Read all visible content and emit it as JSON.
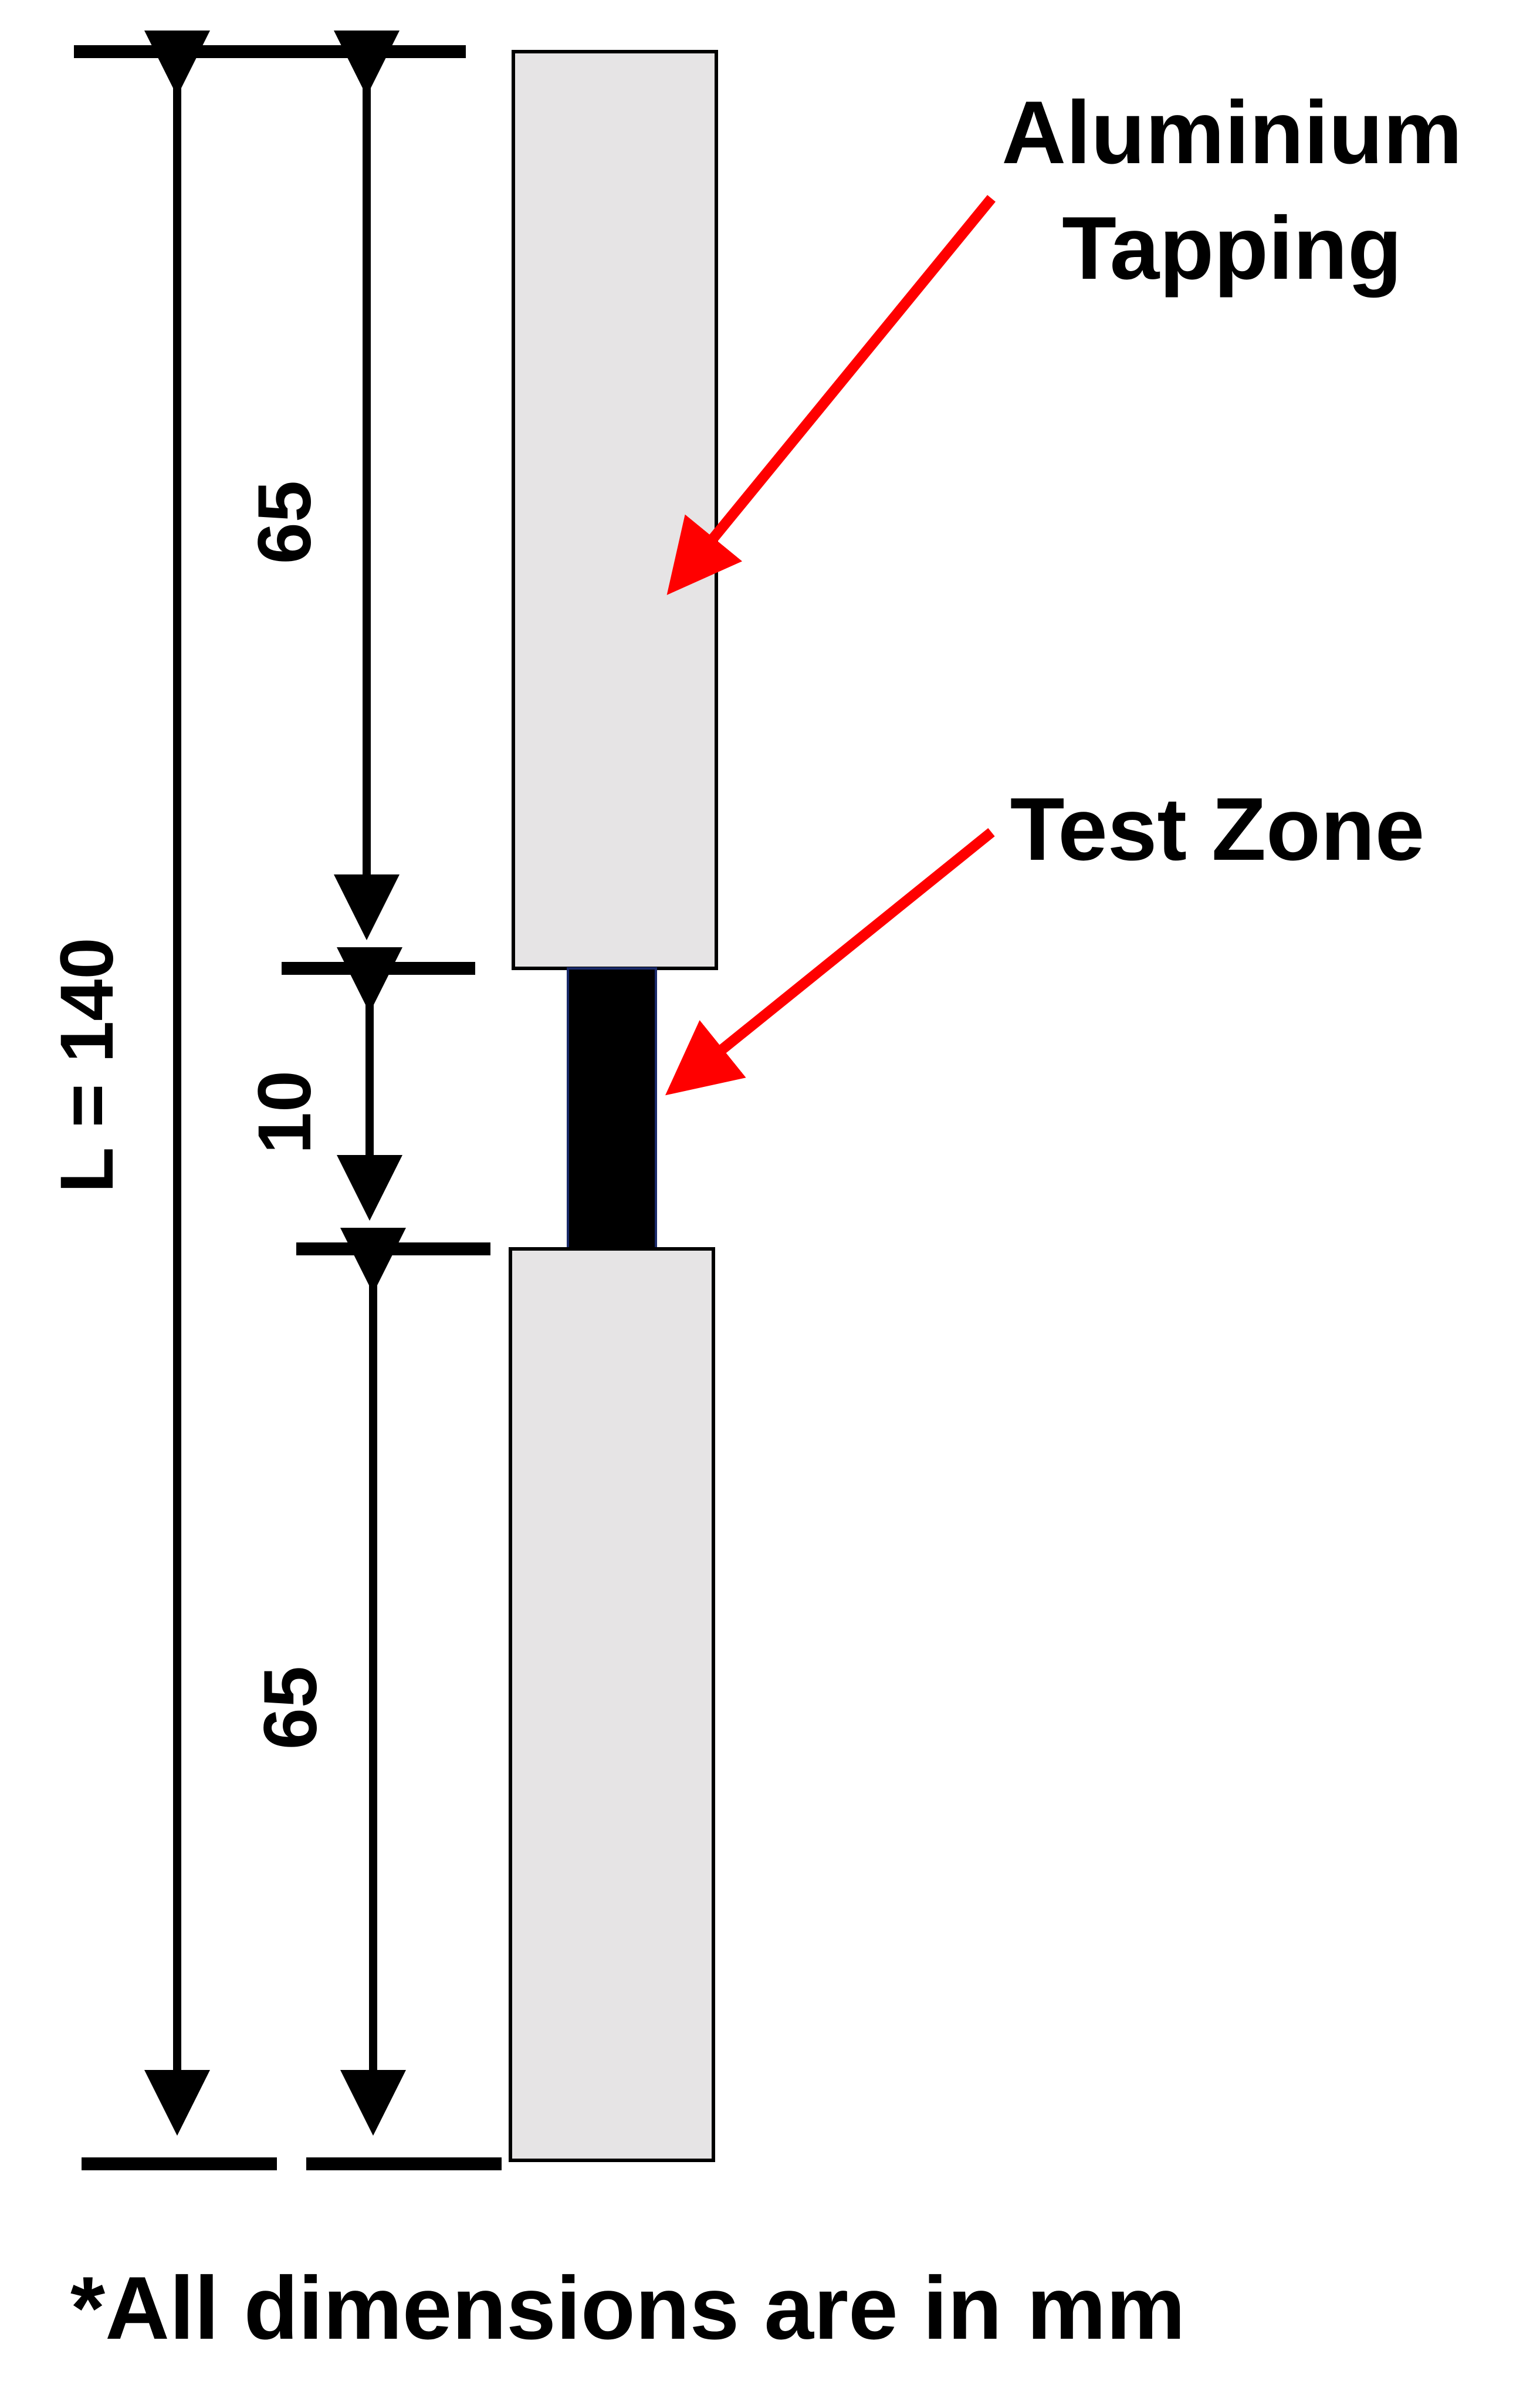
{
  "colors": {
    "tapping_fill": "#e6e4e5",
    "test_zone_fill": "#000000",
    "arrow_color": "#ff0000",
    "dimension_color": "#000000"
  },
  "dimensions": {
    "total_label": "L = 140",
    "top_label": "65",
    "middle_label": "10",
    "bottom_label": "65"
  },
  "callouts": {
    "aluminium_line1": "Aluminium",
    "aluminium_line2": "Tapping",
    "test_zone": "Test Zone"
  },
  "footnote": "*All dimensions are in mm"
}
